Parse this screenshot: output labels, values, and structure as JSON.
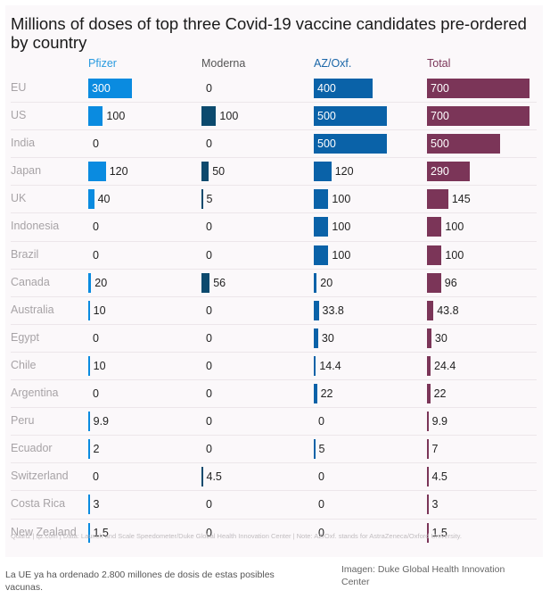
{
  "chart_data": {
    "type": "table",
    "title": "Millions of doses of top three Covid-19 vaccine candidates pre-ordered by country",
    "columns": [
      {
        "key": "pfizer",
        "label": "Pfizer",
        "color": "#0a8be0",
        "header_color": "#2a9be0"
      },
      {
        "key": "moderna",
        "label": "Moderna",
        "color": "#0c4a6e",
        "header_color": "#555555"
      },
      {
        "key": "az",
        "label": "AZ/Oxf.",
        "color": "#0a62a8",
        "header_color": "#1a66a8"
      },
      {
        "key": "total",
        "label": "Total",
        "color": "#7b3558",
        "header_color": "#7b3558"
      }
    ],
    "max_value": 700,
    "rows": [
      {
        "country": "EU",
        "pfizer": "300",
        "moderna": "0",
        "az": "400",
        "total": "700"
      },
      {
        "country": "US",
        "pfizer": "100",
        "moderna": "100",
        "az": "500",
        "total": "700"
      },
      {
        "country": "India",
        "pfizer": "0",
        "moderna": "0",
        "az": "500",
        "total": "500"
      },
      {
        "country": "Japan",
        "pfizer": "120",
        "moderna": "50",
        "az": "120",
        "total": "290"
      },
      {
        "country": "UK",
        "pfizer": "40",
        "moderna": "5",
        "az": "100",
        "total": "145"
      },
      {
        "country": "Indonesia",
        "pfizer": "0",
        "moderna": "0",
        "az": "100",
        "total": "100"
      },
      {
        "country": "Brazil",
        "pfizer": "0",
        "moderna": "0",
        "az": "100",
        "total": "100"
      },
      {
        "country": "Canada",
        "pfizer": "20",
        "moderna": "56",
        "az": "20",
        "total": "96"
      },
      {
        "country": "Australia",
        "pfizer": "10",
        "moderna": "0",
        "az": "33.8",
        "total": "43.8"
      },
      {
        "country": "Egypt",
        "pfizer": "0",
        "moderna": "0",
        "az": "30",
        "total": "30"
      },
      {
        "country": "Chile",
        "pfizer": "10",
        "moderna": "0",
        "az": "14.4",
        "total": "24.4"
      },
      {
        "country": "Argentina",
        "pfizer": "0",
        "moderna": "0",
        "az": "22",
        "total": "22"
      },
      {
        "country": "Peru",
        "pfizer": "9.9",
        "moderna": "0",
        "az": "0",
        "total": "9.9"
      },
      {
        "country": "Ecuador",
        "pfizer": "2",
        "moderna": "0",
        "az": "5",
        "total": "7"
      },
      {
        "country": "Switzerland",
        "pfizer": "0",
        "moderna": "4.5",
        "az": "0",
        "total": "4.5"
      },
      {
        "country": "Costa Rica",
        "pfizer": "3",
        "moderna": "0",
        "az": "0",
        "total": "3"
      },
      {
        "country": "New Zealand",
        "pfizer": "1.5",
        "moderna": "0",
        "az": "0",
        "total": "1.5"
      }
    ],
    "source": "Quartz | qz.com | Data: Launch and Scale Speedometer/Duke Global Health Innovation Center | Note: AZ/Oxf. stands for AstraZeneca/Oxford University."
  },
  "caption": "La UE ya ha ordenado 2.800 millones de dosis de estas posibles vacunas.",
  "credit": "Imagen: Duke Global Health Innovation Center"
}
